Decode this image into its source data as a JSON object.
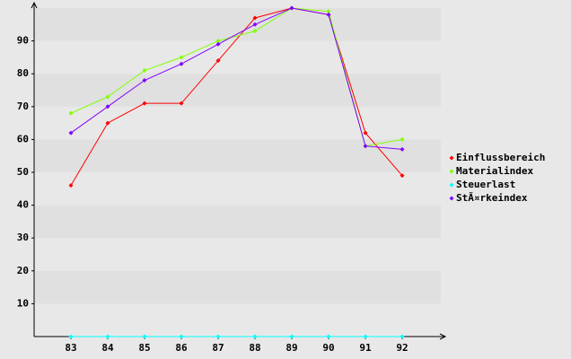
{
  "chart_data": {
    "type": "line",
    "categories": [
      "83",
      "84",
      "85",
      "86",
      "87",
      "88",
      "89",
      "90",
      "91",
      "92"
    ],
    "series": [
      {
        "name": "Einflussbereich",
        "color": "#ff0000",
        "values": [
          46,
          65,
          71,
          71,
          84,
          97,
          100,
          98,
          62,
          49
        ]
      },
      {
        "name": "Materialindex",
        "color": "#80ff00",
        "values": [
          68,
          73,
          81,
          85,
          90,
          93,
          100,
          99,
          58,
          60
        ]
      },
      {
        "name": "Steuerlast",
        "color": "#00ffff",
        "values": [
          0,
          0,
          0,
          0,
          0,
          0,
          0,
          0,
          0,
          0
        ]
      },
      {
        "name": "StÃ¤rkeindex",
        "color": "#8000ff",
        "values": [
          62,
          70,
          78,
          83,
          89,
          95,
          100,
          98,
          58,
          57
        ]
      }
    ],
    "ylim": [
      0,
      100
    ],
    "yticks": [
      10,
      20,
      30,
      40,
      50,
      60,
      70,
      80,
      90
    ],
    "grid": true,
    "legend": "right"
  }
}
